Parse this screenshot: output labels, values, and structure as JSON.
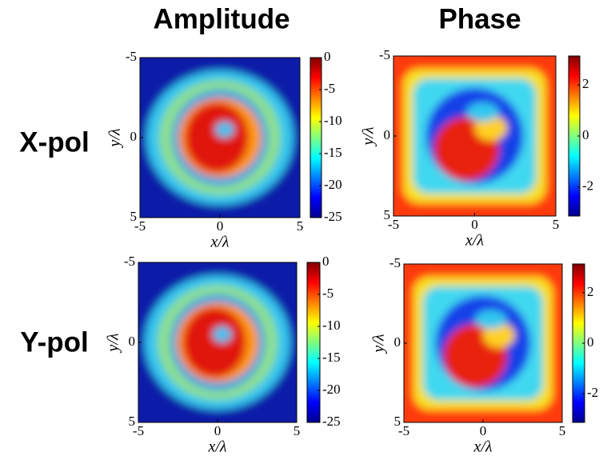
{
  "figure": {
    "column_titles": [
      "Amplitude",
      "Phase"
    ],
    "row_labels": [
      "X-pol",
      "Y-pol"
    ]
  },
  "chart_data": [
    {
      "type": "heatmap",
      "xlabel": "x/λ",
      "ylabel": "y/λ",
      "xlim": [
        -5,
        5
      ],
      "ylim": [
        -5,
        5
      ],
      "y_reversed": true,
      "xticks": [
        -5,
        0,
        5
      ],
      "yticks": [
        -5,
        0,
        5
      ],
      "colormap": "jet",
      "clim": [
        -25,
        0
      ],
      "cticks": [
        0,
        -5,
        -10,
        -15,
        -20,
        -25
      ]
    },
    {
      "type": "heatmap",
      "xlabel": "x/λ",
      "ylabel": "y/λ",
      "xlim": [
        -5,
        5
      ],
      "ylim": [
        -5,
        5
      ],
      "y_reversed": true,
      "xticks": [
        -5,
        0,
        5
      ],
      "yticks": [
        -5,
        0,
        5
      ],
      "colormap": "jet",
      "clim": [
        -3.14,
        3.14
      ],
      "cticks": [
        2,
        0,
        -2
      ]
    },
    {
      "type": "heatmap",
      "xlabel": "x/λ",
      "ylabel": "y/λ",
      "xlim": [
        -5,
        5
      ],
      "ylim": [
        -5,
        5
      ],
      "y_reversed": true,
      "xticks": [
        -5,
        0,
        5
      ],
      "yticks": [
        -5,
        0,
        5
      ],
      "colormap": "jet",
      "clim": [
        -25,
        0
      ],
      "cticks": [
        0,
        -5,
        -10,
        -15,
        -20,
        -25
      ]
    },
    {
      "type": "heatmap",
      "xlabel": "x/λ",
      "ylabel": "y/λ",
      "xlim": [
        -5,
        5
      ],
      "ylim": [
        -5,
        5
      ],
      "y_reversed": true,
      "xticks": [
        -5,
        0,
        5
      ],
      "yticks": [
        -5,
        0,
        5
      ],
      "colormap": "jet",
      "clim": [
        -3.14,
        3.14
      ],
      "cticks": [
        2,
        0,
        -2
      ]
    }
  ]
}
